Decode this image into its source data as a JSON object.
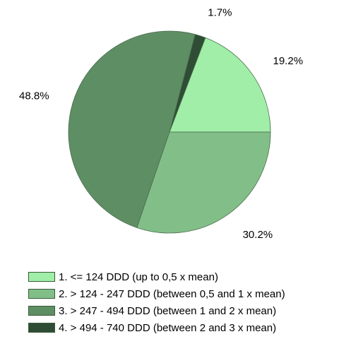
{
  "chart_data": {
    "type": "pie",
    "title": "",
    "slices": [
      {
        "label": "1. <= 124 DDD (up to 0,5 x mean)",
        "value": 19.2,
        "value_label": "19.2%",
        "color": "#a0eea8"
      },
      {
        "label": "4. > 494 - 740 DDD (between 2 and 3 x mean)",
        "value": 1.7,
        "value_label": "1.7%",
        "color": "#2f4d35"
      },
      {
        "label": "3. > 247 - 494 DDD (between 1 and 2 x mean)",
        "value": 48.8,
        "value_label": "48.8%",
        "color": "#5e8f64"
      },
      {
        "label": "2. > 124 - 247 DDD (between 0,5 and 1 x mean)",
        "value": 30.2,
        "value_label": "30.2%",
        "color": "#82bf88"
      }
    ],
    "legend": {
      "position": "bottom",
      "entries": [
        {
          "label": "1. <= 124 DDD (up to 0,5 x mean)",
          "color": "#a0eea8"
        },
        {
          "label": "2. > 124 - 247 DDD (between 0,5 and 1 x mean)",
          "color": "#82bf88"
        },
        {
          "label": "3. > 247 - 494 DDD (between 1 and 2 x mean)",
          "color": "#5e8f64"
        },
        {
          "label": "4. > 494 - 740 DDD (between 2 and 3 x mean)",
          "color": "#2f4d35"
        }
      ]
    }
  }
}
